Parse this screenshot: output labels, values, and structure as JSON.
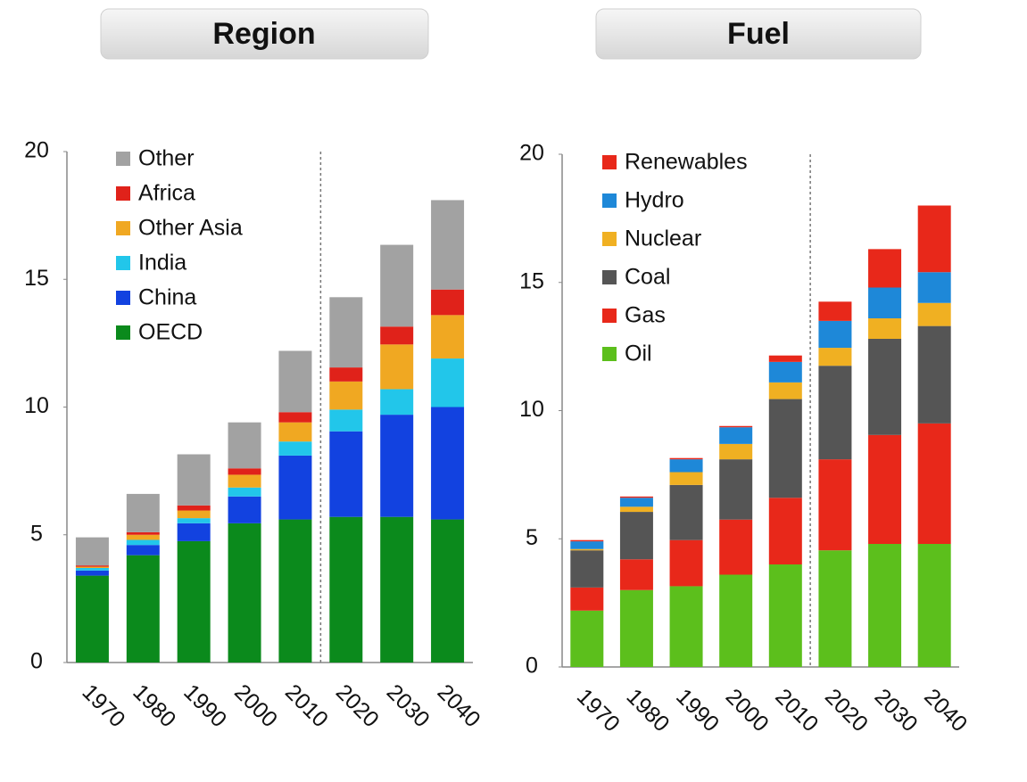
{
  "chart_data": [
    {
      "type": "bar",
      "title": "Region",
      "stacked": true,
      "categories": [
        "1970",
        "1980",
        "1990",
        "2000",
        "2010",
        "2020",
        "2030",
        "2040"
      ],
      "series": [
        {
          "name": "OECD",
          "color": "#0b8a1c",
          "values": [
            3.4,
            4.2,
            4.75,
            5.45,
            5.6,
            5.7,
            5.7,
            5.6
          ]
        },
        {
          "name": "China",
          "color": "#1242e0",
          "values": [
            0.2,
            0.4,
            0.7,
            1.05,
            2.5,
            3.35,
            4.0,
            4.4
          ]
        },
        {
          "name": "India",
          "color": "#22c6ea",
          "values": [
            0.1,
            0.2,
            0.2,
            0.35,
            0.55,
            0.85,
            1.0,
            1.9
          ]
        },
        {
          "name": "Other Asia",
          "color": "#f0a822",
          "values": [
            0.05,
            0.2,
            0.3,
            0.5,
            0.75,
            1.1,
            1.75,
            1.7
          ]
        },
        {
          "name": "Africa",
          "color": "#e0221a",
          "values": [
            0.05,
            0.1,
            0.2,
            0.25,
            0.4,
            0.55,
            0.7,
            1.0
          ]
        },
        {
          "name": "Other",
          "color": "#a2a2a2",
          "values": [
            1.1,
            1.5,
            2.0,
            1.8,
            2.4,
            2.75,
            3.2,
            3.5
          ]
        }
      ],
      "ylim": [
        0,
        20
      ],
      "yticks": [
        0,
        5,
        10,
        15,
        20
      ],
      "grid": false,
      "legend": "top-left"
    },
    {
      "type": "bar",
      "title": "Fuel",
      "stacked": true,
      "categories": [
        "1970",
        "1980",
        "1990",
        "2000",
        "2010",
        "2020",
        "2030",
        "2040"
      ],
      "series": [
        {
          "name": "Oil",
          "color": "#5cbf1c",
          "values": [
            2.2,
            3.0,
            3.15,
            3.6,
            4.0,
            4.55,
            4.8,
            4.8
          ]
        },
        {
          "name": "Gas",
          "color": "#e8281a",
          "values": [
            0.9,
            1.2,
            1.8,
            2.15,
            2.6,
            3.55,
            4.25,
            4.7
          ]
        },
        {
          "name": "Coal",
          "color": "#555555",
          "values": [
            1.45,
            1.85,
            2.15,
            2.35,
            3.85,
            3.65,
            3.75,
            3.8
          ]
        },
        {
          "name": "Nuclear",
          "color": "#f0b022",
          "values": [
            0.05,
            0.2,
            0.5,
            0.6,
            0.65,
            0.7,
            0.8,
            0.9
          ]
        },
        {
          "name": "Hydro",
          "color": "#1e88d8",
          "values": [
            0.3,
            0.35,
            0.5,
            0.65,
            0.8,
            1.05,
            1.2,
            1.2
          ]
        },
        {
          "name": "Renewables",
          "color": "#e8281a",
          "values": [
            0.05,
            0.05,
            0.05,
            0.05,
            0.25,
            0.75,
            1.5,
            2.6
          ]
        }
      ],
      "ylim": [
        0,
        20
      ],
      "yticks": [
        0,
        5,
        10,
        15,
        20
      ],
      "grid": false,
      "legend": "top-left"
    }
  ]
}
